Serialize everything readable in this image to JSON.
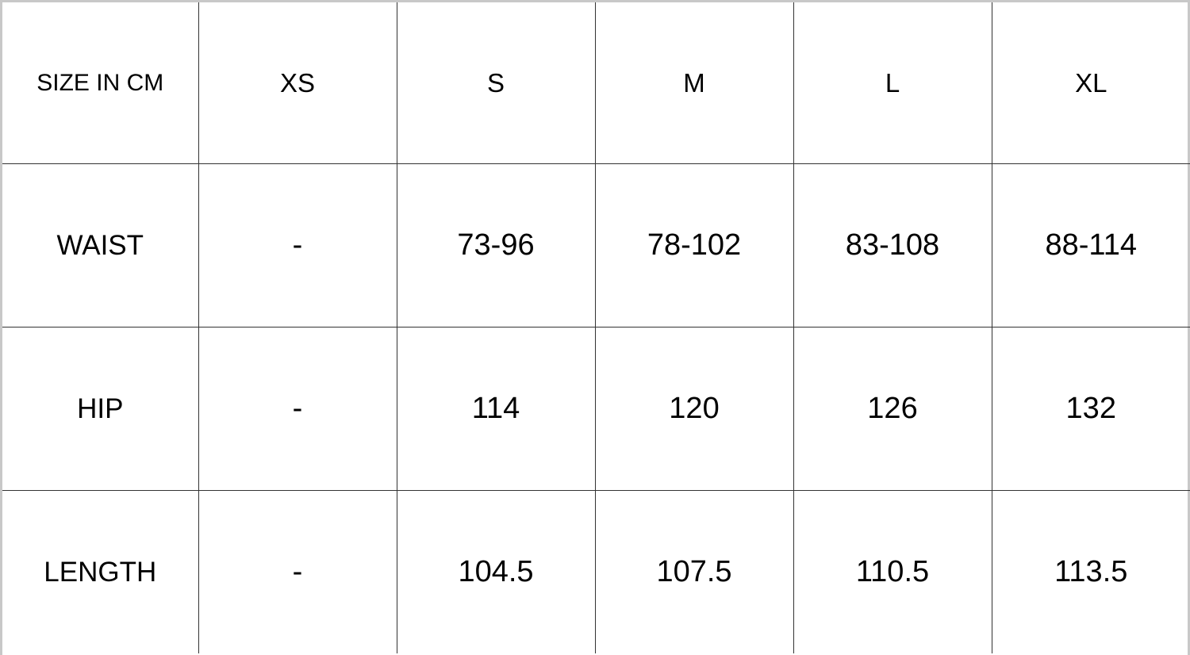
{
  "table": {
    "header": [
      "SIZE IN CM",
      "XS",
      "S",
      "M",
      "L",
      "XL"
    ],
    "rows": [
      {
        "label": "WAIST",
        "values": [
          "-",
          "73-96",
          "78-102",
          "83-108",
          "88-114"
        ]
      },
      {
        "label": "HIP",
        "values": [
          "-",
          "114",
          "120",
          "126",
          "132"
        ]
      },
      {
        "label": "LENGTH",
        "values": [
          "-",
          "104.5",
          "107.5",
          "110.5",
          "113.5"
        ]
      }
    ]
  }
}
